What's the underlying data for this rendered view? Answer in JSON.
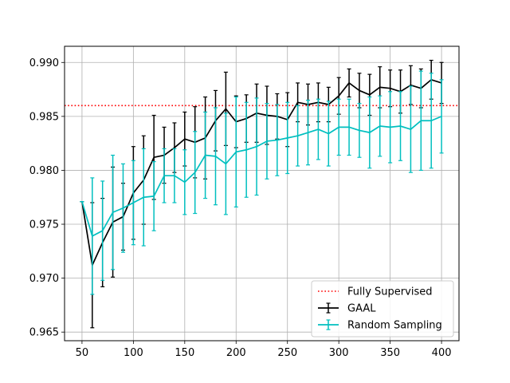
{
  "chart_data": {
    "type": "line",
    "title": "",
    "xlabel": "",
    "ylabel": "",
    "xlim": [
      33,
      417
    ],
    "ylim": [
      0.9642,
      0.9915
    ],
    "grid": true,
    "legend_position": "lower-right",
    "x_ticks": [
      50,
      100,
      150,
      200,
      250,
      300,
      350,
      400
    ],
    "x_tick_labels": [
      "50",
      "100",
      "150",
      "200",
      "250",
      "300",
      "350",
      "400"
    ],
    "y_ticks": [
      0.965,
      0.97,
      0.975,
      0.98,
      0.985,
      0.99
    ],
    "y_tick_labels": [
      "0.965",
      "0.970",
      "0.975",
      "0.980",
      "0.985",
      "0.990"
    ],
    "reference_line": {
      "name": "Fully Supervised",
      "y": 0.986,
      "color": "#ff0000",
      "style": "dotted"
    },
    "series": [
      {
        "name": "GAAL",
        "color": "#000000",
        "x": [
          50,
          60,
          70,
          80,
          90,
          100,
          110,
          120,
          130,
          140,
          150,
          160,
          170,
          180,
          190,
          200,
          210,
          220,
          230,
          240,
          250,
          260,
          270,
          280,
          290,
          300,
          310,
          320,
          330,
          340,
          350,
          360,
          370,
          380,
          390,
          400
        ],
        "y": [
          0.9771,
          0.9712,
          0.9733,
          0.9752,
          0.9757,
          0.9779,
          0.9791,
          0.9812,
          0.9814,
          0.9821,
          0.9829,
          0.9826,
          0.983,
          0.9846,
          0.9857,
          0.9845,
          0.9848,
          0.9853,
          0.9851,
          0.985,
          0.9847,
          0.9863,
          0.9861,
          0.9863,
          0.9861,
          0.9869,
          0.9881,
          0.9874,
          0.987,
          0.9877,
          0.9876,
          0.9873,
          0.9879,
          0.9876,
          0.9884,
          0.9881
        ],
        "err": [
          0.0,
          0.0058,
          0.0041,
          0.0051,
          0.0031,
          0.0043,
          0.0041,
          0.0039,
          0.0026,
          0.0023,
          0.0025,
          0.0033,
          0.0038,
          0.0028,
          0.0034,
          0.0024,
          0.0022,
          0.0027,
          0.0027,
          0.0021,
          0.0025,
          0.0018,
          0.0019,
          0.0018,
          0.0016,
          0.0017,
          0.0013,
          0.0016,
          0.0019,
          0.0019,
          0.0017,
          0.002,
          0.0018,
          0.0018,
          0.0018,
          0.0019
        ]
      },
      {
        "name": "Random Sampling",
        "color": "#00bfbf",
        "x": [
          50,
          60,
          70,
          80,
          90,
          100,
          110,
          120,
          130,
          140,
          150,
          160,
          170,
          180,
          190,
          200,
          210,
          220,
          230,
          240,
          250,
          260,
          270,
          280,
          290,
          300,
          310,
          320,
          330,
          340,
          350,
          360,
          370,
          380,
          390,
          400
        ],
        "y": [
          0.9771,
          0.9739,
          0.9744,
          0.9761,
          0.9765,
          0.977,
          0.9775,
          0.9776,
          0.9795,
          0.9795,
          0.9789,
          0.9798,
          0.9814,
          0.9813,
          0.9806,
          0.9817,
          0.9819,
          0.9822,
          0.9827,
          0.9828,
          0.983,
          0.9832,
          0.9835,
          0.9838,
          0.9834,
          0.984,
          0.984,
          0.9837,
          0.9835,
          0.9841,
          0.984,
          0.9841,
          0.9838,
          0.9846,
          0.9846,
          0.985
        ],
        "err": [
          0.0,
          0.0054,
          0.0046,
          0.0053,
          0.0041,
          0.0039,
          0.0045,
          0.0032,
          0.0025,
          0.0025,
          0.003,
          0.0038,
          0.004,
          0.0045,
          0.0047,
          0.0051,
          0.0044,
          0.0045,
          0.0035,
          0.0033,
          0.0033,
          0.0028,
          0.003,
          0.0028,
          0.003,
          0.0026,
          0.0026,
          0.0025,
          0.0033,
          0.0028,
          0.0033,
          0.0032,
          0.004,
          0.0046,
          0.0044,
          0.0034
        ]
      }
    ]
  }
}
